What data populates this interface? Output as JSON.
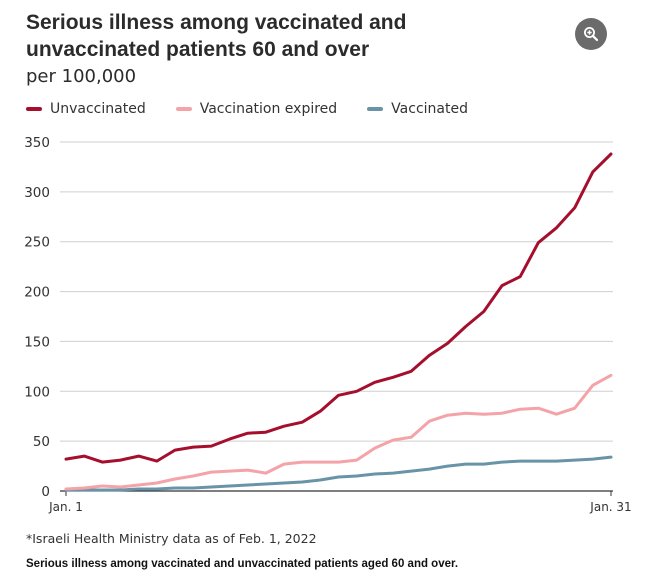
{
  "title": "Serious illness among vaccinated and unvaccinated patients 60 and over",
  "subtitle": "per 100,000",
  "zoom_icon": "zoom-in-icon",
  "footnote": "*Israeli Health Ministry data as of Feb. 1, 2022",
  "caption": "Serious illness among vaccinated and unvaccinated patients aged 60 and over.",
  "chart_data": {
    "type": "line",
    "title": "Serious illness among vaccinated and unvaccinated patients 60 and over",
    "subtitle": "per 100,000",
    "xlabel": "",
    "ylabel": "",
    "x": [
      1,
      2,
      3,
      4,
      5,
      6,
      7,
      8,
      9,
      10,
      11,
      12,
      13,
      14,
      15,
      16,
      17,
      18,
      19,
      20,
      21,
      22,
      23,
      24,
      25,
      26,
      27,
      28,
      29,
      30,
      31
    ],
    "x_tick_labels": [
      {
        "x": 1,
        "label": "Jan. 1"
      },
      {
        "x": 31,
        "label": "Jan. 31"
      }
    ],
    "yticks": [
      0,
      50,
      100,
      150,
      200,
      250,
      300,
      350
    ],
    "ylim": [
      0,
      350
    ],
    "grid": "horizontal",
    "legend_position": "top-left",
    "series": [
      {
        "name": "Unvaccinated",
        "color": "#a50f2d",
        "values": [
          32,
          35,
          29,
          31,
          35,
          30,
          41,
          44,
          45,
          52,
          58,
          59,
          65,
          69,
          80,
          96,
          100,
          109,
          114,
          120,
          136,
          148,
          165,
          180,
          206,
          215,
          249,
          264,
          284,
          320,
          338
        ]
      },
      {
        "name": "Vaccination expired",
        "color": "#f4a3a8",
        "values": [
          2,
          3,
          5,
          4,
          6,
          8,
          12,
          15,
          19,
          20,
          21,
          18,
          27,
          29,
          29,
          29,
          31,
          43,
          51,
          54,
          70,
          76,
          78,
          77,
          78,
          82,
          83,
          77,
          83,
          106,
          116
        ]
      },
      {
        "name": "Vaccinated",
        "color": "#6994a8",
        "values": [
          1,
          1,
          1,
          1,
          2,
          2,
          3,
          3,
          4,
          5,
          6,
          7,
          8,
          9,
          11,
          14,
          15,
          17,
          18,
          20,
          22,
          25,
          27,
          27,
          29,
          30,
          30,
          30,
          31,
          32,
          34
        ]
      }
    ]
  }
}
